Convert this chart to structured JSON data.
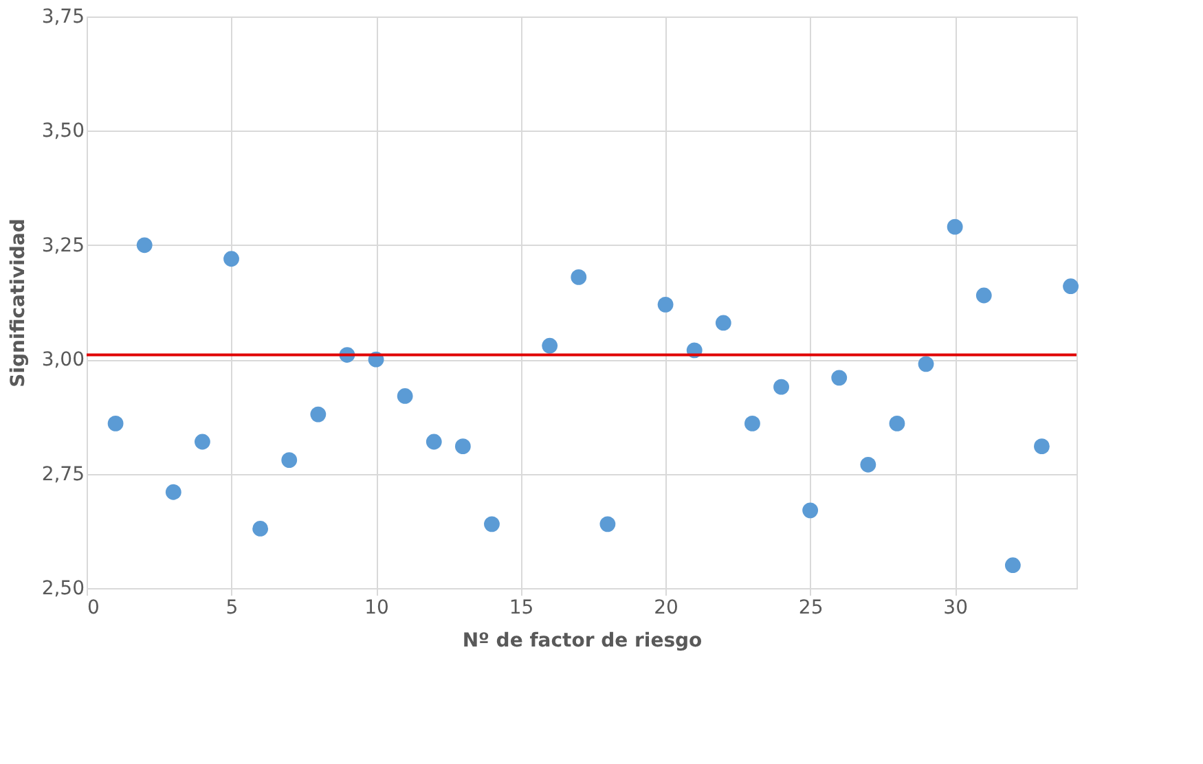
{
  "chart_data": {
    "type": "scatter",
    "xlabel": "Nº de factor de riesgo",
    "ylabel": "Significatividad",
    "x": [
      1,
      2,
      3,
      4,
      5,
      6,
      7,
      8,
      9,
      10,
      11,
      12,
      13,
      14,
      16,
      17,
      18,
      20,
      21,
      22,
      23,
      24,
      25,
      26,
      27,
      28,
      29,
      30,
      31,
      32,
      33,
      34
    ],
    "series": [
      {
        "color": "#5b9bd5",
        "values": [
          2.86,
          3.25,
          2.71,
          2.82,
          3.22,
          2.63,
          2.78,
          2.88,
          3.01,
          3.0,
          2.92,
          2.82,
          2.81,
          2.64,
          3.03,
          3.18,
          2.64,
          3.12,
          3.02,
          3.08,
          2.86,
          2.94,
          2.67,
          2.96,
          2.77,
          2.86,
          2.99,
          3.29,
          3.14,
          2.55,
          2.81,
          3.16
        ]
      }
    ],
    "xlim": [
      0,
      34.2
    ],
    "xticks": [
      0,
      5,
      10,
      15,
      20,
      25,
      30
    ],
    "ylim": [
      2.5,
      3.75
    ],
    "yticks": [
      {
        "value": 2.5,
        "label": "2,50"
      },
      {
        "value": 2.75,
        "label": "2,75"
      },
      {
        "value": 3.0,
        "label": "3,00"
      },
      {
        "value": 3.25,
        "label": "3,25"
      },
      {
        "value": 3.5,
        "label": "3,50"
      },
      {
        "value": 3.75,
        "label": "3,75"
      }
    ],
    "ref_lines": [
      {
        "axis": "y",
        "value": 3.01,
        "color": "#e00000"
      }
    ],
    "grid": true,
    "marker": "circle"
  }
}
